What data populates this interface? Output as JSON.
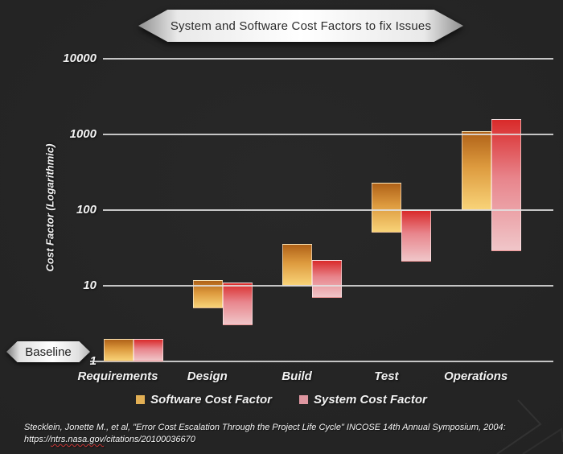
{
  "title_banner": {
    "text": "System and Software Cost Factors to fix Issues"
  },
  "baseline_label": "Baseline",
  "chart_data": {
    "type": "bar",
    "subtype": "floating-range-bars",
    "title": "System and Software Cost Factors to fix Issues",
    "categories": [
      "Requirements",
      "Design",
      "Build",
      "Test",
      "Operations"
    ],
    "series": [
      {
        "name": "Software Cost Factor",
        "ranges": [
          [
            1,
            2
          ],
          [
            5,
            12
          ],
          [
            10,
            36
          ],
          [
            50,
            230
          ],
          [
            100,
            1100
          ]
        ],
        "color_top": "#b06218",
        "color_mid": "#dd9a3e",
        "color_bottom": "#f8d378",
        "legend_color": "#e2af54"
      },
      {
        "name": "System Cost Factor",
        "ranges": [
          [
            1,
            2
          ],
          [
            3,
            11
          ],
          [
            7,
            22
          ],
          [
            21,
            100
          ],
          [
            29,
            1600
          ]
        ],
        "color_top": "#d92a2a",
        "color_mid": "#e8858c",
        "color_bottom": "#f0c6c9",
        "legend_color": "#de96a0"
      }
    ],
    "xlabel": "",
    "ylabel": "Cost Factor (Logarithmic)",
    "yscale": "log",
    "ylim": [
      1,
      10000
    ],
    "yticks": [
      1,
      10,
      100,
      1000,
      10000
    ],
    "grid": true,
    "legend_position": "bottom"
  },
  "y_axis": {
    "label": "Cost Factor (Logarithmic)",
    "tick_labels": [
      "10000",
      "1000",
      "100",
      "10",
      "1"
    ]
  },
  "legend": {
    "items": [
      {
        "label": "Software Cost Factor",
        "color": "#e2af54"
      },
      {
        "label": "System Cost Factor",
        "color": "#de96a0"
      }
    ]
  },
  "footer": {
    "line1": "Stecklein, Jonette M., et al, \"Error Cost Escalation Through the Project Life Cycle\" INCOSE 14th Annual Symposium, 2004:",
    "url_prefix": "https://",
    "url_domain": "ntrs.nasa.gov",
    "url_path": "/citations/20100036670"
  },
  "colors": {
    "background": "#242424",
    "gridline": "#e2e2e2",
    "banner_silver": "#ffffff",
    "text": "#f2f2f2",
    "squiggle_red": "#c43434"
  }
}
